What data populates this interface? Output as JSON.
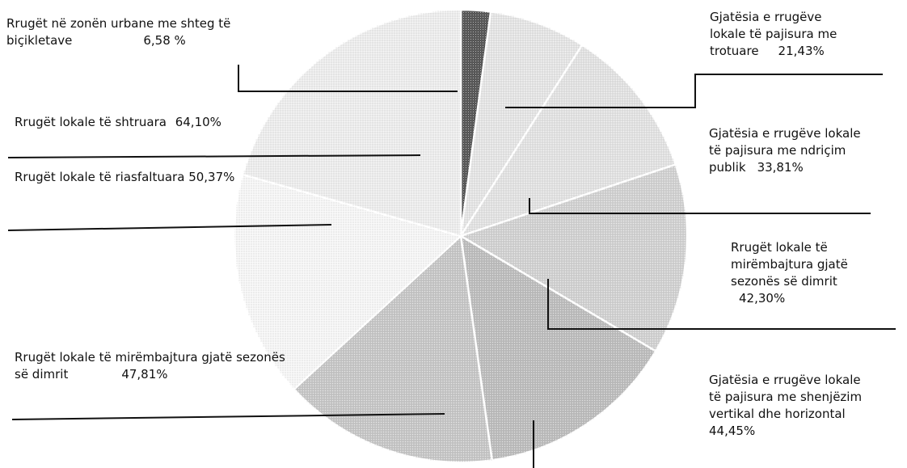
{
  "chart_data": {
    "type": "pie",
    "slices": [
      {
        "label": "Rrugët në zonën urbane me shteg të biçikletave",
        "value": 6.58,
        "value_text": "6,58 %",
        "color": "#555555"
      },
      {
        "label": "Gjatësia e rrugëve lokale të pajisura me trotuare",
        "value": 21.43,
        "value_text": "21,43%",
        "color": "#e6e6e6"
      },
      {
        "label": "Gjatësia e rrugëve lokale të pajisura me ndriçim publik",
        "value": 33.81,
        "value_text": "33,81%",
        "color": "#e3e3e3"
      },
      {
        "label": "Rrugët lokale të mirëmbajtura gjatë sezonës së dimrit",
        "value": 42.3,
        "value_text": "42,30%",
        "color": "#d2d2d2"
      },
      {
        "label": "Gjatësia e rrugëve lokale të pajisura me shenjëzim vertikal dhe horizontal",
        "value": 44.45,
        "value_text": "44,45%",
        "color": "#bdbdbd"
      },
      {
        "label": "Rrugët lokale të mirëmbajtura gjatë sezonës së dimrit",
        "value": 47.81,
        "value_text": "47,81%",
        "color": "#c7c7c7"
      },
      {
        "label": "Rrugët lokale të riasfaltuara",
        "value": 50.37,
        "value_text": "50,37%",
        "color": "#f7f7f7"
      },
      {
        "label": "Rrugët lokale të shtruara",
        "value": 64.1,
        "value_text": "64,10%",
        "color": "#eeeeee"
      }
    ]
  },
  "labels": {
    "bike_line1": "Rrugët në zonën urbane me shteg të",
    "bike_line2": "biçikletave",
    "bike_value": "6,58 %",
    "trot_line1": "Gjatësia e rrugëve",
    "trot_line2": "lokale të pajisura me",
    "trot_line3": "trotuare",
    "trot_value": "21,43%",
    "ndr_line1": "Gjatësia e rrugëve lokale",
    "ndr_line2": "të pajisura me ndriçim",
    "ndr_line3": "publik",
    "ndr_value": "33,81%",
    "mir_line1": "Rrugët lokale të",
    "mir_line2": "mirëmbajtura gjatë",
    "mir_line3": "sezonës së dimrit",
    "mir_value": "42,30%",
    "shen_line1": "Gjatësia e rrugëve lokale",
    "shen_line2": "të pajisura me shenjëzim",
    "shen_line3": "vertikal dhe horizontal",
    "shen_value": "44,45%",
    "mir2_line1": "Rrugët lokale të mirëmbajtura gjatë sezonës",
    "mir2_line2": "së dimrit",
    "mir2_value": "47,81%",
    "riasf": "Rrugët lokale të riasfaltuara",
    "riasf_value": "50,37%",
    "shtr": "Rrugët lokale të shtruara",
    "shtr_value": "64,10%"
  }
}
